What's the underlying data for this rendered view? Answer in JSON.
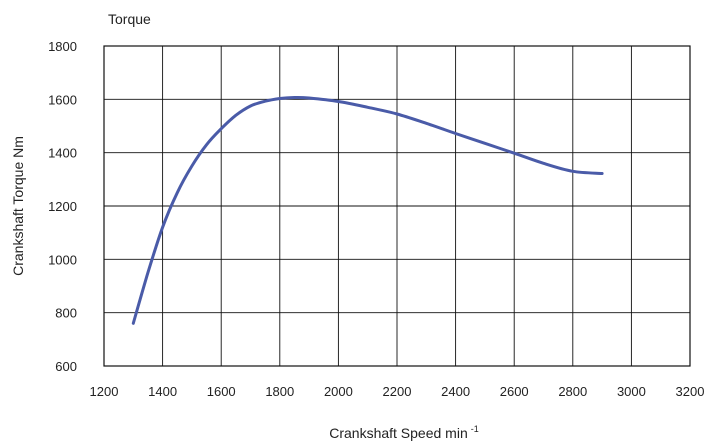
{
  "chart_data": {
    "type": "line",
    "title": "Torque",
    "xlabel": "Crankshaft Speed min",
    "xlabel_superscript": "-1",
    "ylabel": "Crankshaft Torque Nm",
    "xlim": [
      1200,
      3200
    ],
    "ylim": [
      600,
      1800
    ],
    "xticks": [
      1200,
      1400,
      1600,
      1800,
      2000,
      2200,
      2400,
      2600,
      2800,
      3000,
      3200
    ],
    "yticks": [
      600,
      800,
      1000,
      1200,
      1400,
      1600,
      1800
    ],
    "grid": true,
    "series": [
      {
        "color": "#4a5ba8",
        "x": [
          1300,
          1350,
          1400,
          1450,
          1500,
          1550,
          1600,
          1650,
          1700,
          1750,
          1800,
          1850,
          1900,
          2000,
          2100,
          2200,
          2300,
          2400,
          2500,
          2600,
          2700,
          2800,
          2900
        ],
        "y": [
          760,
          950,
          1120,
          1250,
          1350,
          1430,
          1490,
          1540,
          1575,
          1593,
          1603,
          1607,
          1605,
          1592,
          1570,
          1545,
          1510,
          1472,
          1435,
          1398,
          1360,
          1330,
          1322
        ]
      }
    ]
  }
}
